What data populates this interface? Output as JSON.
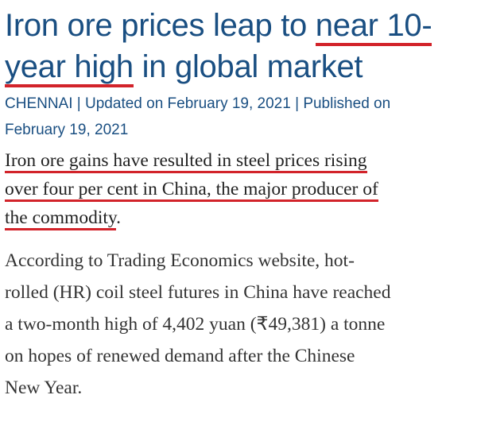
{
  "headline": {
    "line1_a": "Iron ore prices leap to ",
    "line1_b": "near 10-",
    "line2_a": "year high",
    "line2_b": " in global market"
  },
  "meta": {
    "location": "CHENNAI",
    "sep": " | ",
    "updated": "Updated on February 19, 2021",
    "published_label": "Published on",
    "published_date": "February 19, 2021"
  },
  "summary": {
    "line1": "Iron ore gains have resulted in steel prices rising",
    "line2": "over four per cent in China, the major producer of",
    "line3": "the commodity",
    "line3_end": "."
  },
  "body": {
    "line1": "According to Trading Economics website, hot-",
    "line2": "rolled (HR) coil steel futures in China have reached",
    "line3": "a two-month high of 4,402 yuan (₹49,381) a tonne",
    "line4": "on hopes of renewed demand after the Chinese",
    "line5": "New Year."
  },
  "colors": {
    "headline": "#1a4f82",
    "highlight": "#d2232a",
    "body_text": "#333333"
  }
}
